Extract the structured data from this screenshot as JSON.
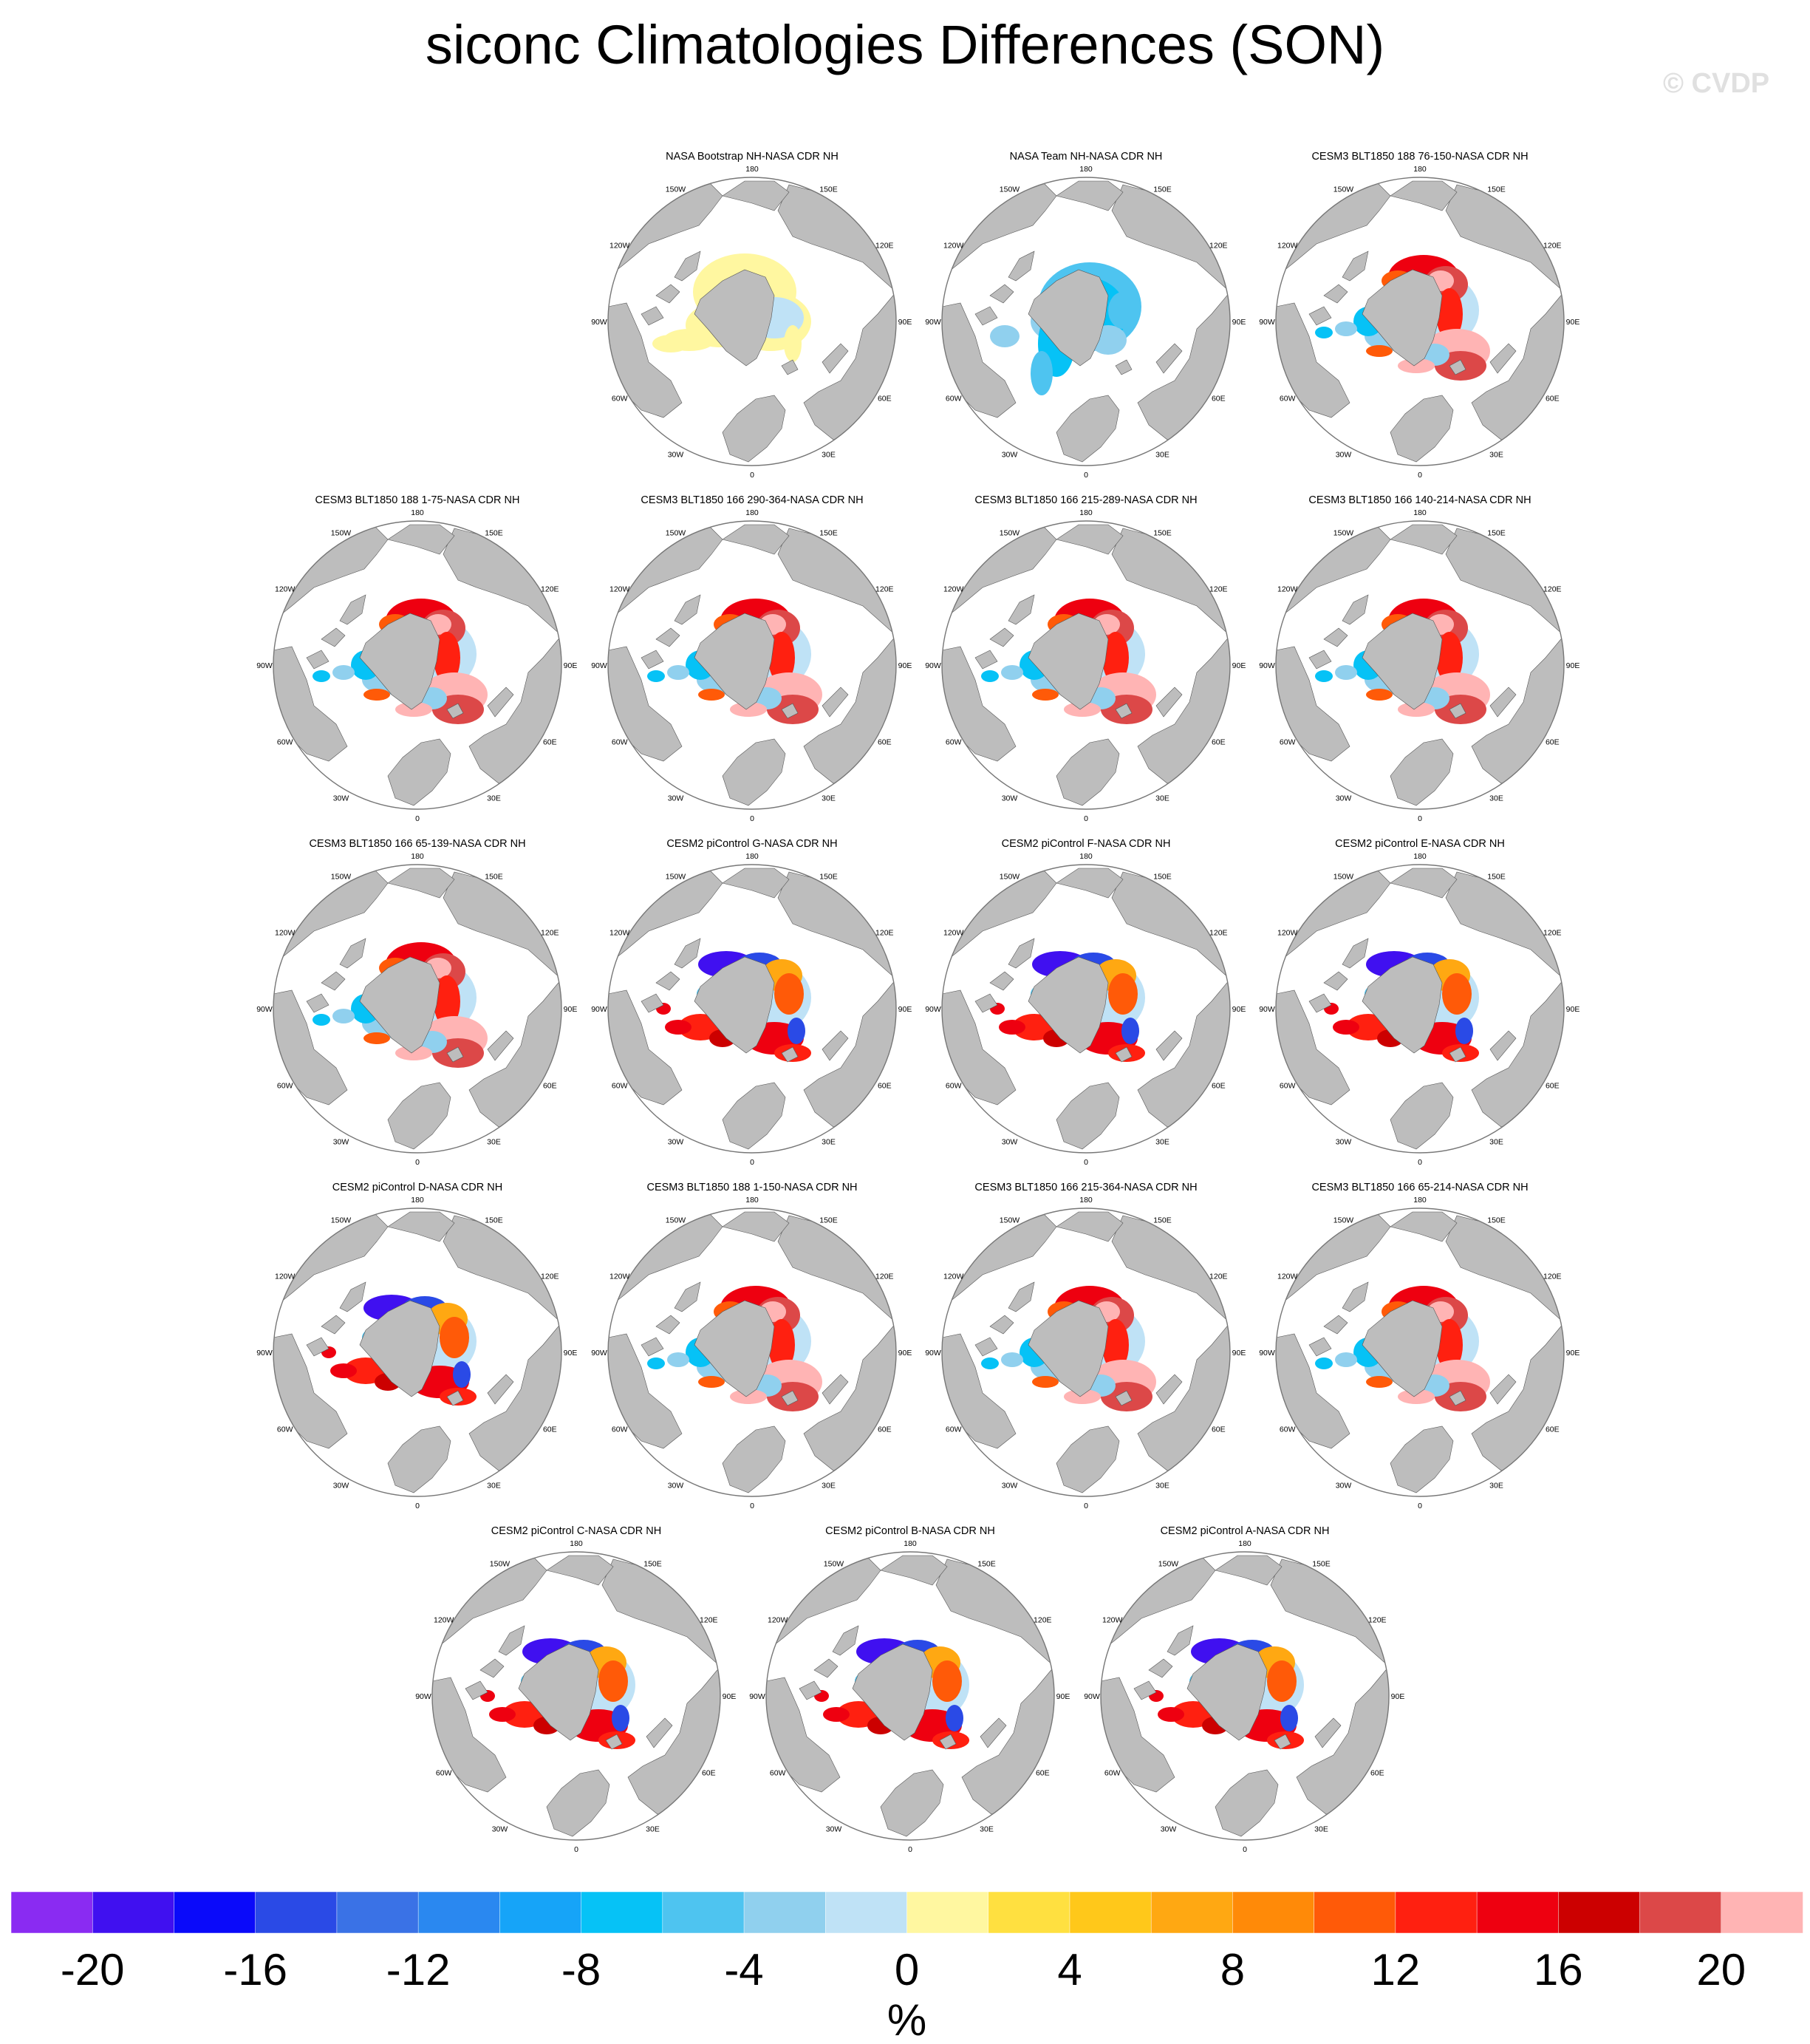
{
  "title": "siconc Climatologies Differences (SON)",
  "watermark": "© CVDP",
  "colors": {
    "land": "#bdbdbd",
    "ocean": "#ffffff",
    "palette": [
      "#8a2bf2",
      "#4010f0",
      "#0a0afa",
      "#2a4ae6",
      "#3a72e6",
      "#2a88f0",
      "#16a4f8",
      "#06c2f6",
      "#4ec4f0",
      "#90d0ee",
      "#bfe2f6",
      "#fff7a0",
      "#ffe040",
      "#ffc81a",
      "#ffa812",
      "#ff8a08",
      "#ff5a08",
      "#ff2010",
      "#ee0010",
      "#cc0000",
      "#dc4848",
      "#ffb4b4"
    ]
  },
  "chart_data": {
    "type": "heatmap",
    "variable": "siconc",
    "season": "SON",
    "map_projection": "north polar stereographic",
    "longitude_labels": [
      "180",
      "150E",
      "120E",
      "90E",
      "60E",
      "30E",
      "0",
      "30W",
      "60W",
      "90W",
      "120W",
      "150W"
    ],
    "panels": [
      {
        "title": "NASA Bootstrap NH-NASA CDR NH",
        "pattern": "yellow_light"
      },
      {
        "title": "NASA Team NH-NASA CDR NH",
        "pattern": "blue"
      },
      {
        "title": "CESM3 BLT1850 188 76-150-NASA CDR NH",
        "pattern": "red_pink"
      },
      {
        "title": "CESM3 BLT1850 188 1-75-NASA CDR NH",
        "pattern": "red_pink"
      },
      {
        "title": "CESM3 BLT1850 166 290-364-NASA CDR NH",
        "pattern": "red_pink"
      },
      {
        "title": "CESM3 BLT1850 166 215-289-NASA CDR NH",
        "pattern": "red_pink"
      },
      {
        "title": "CESM3 BLT1850 166 140-214-NASA CDR NH",
        "pattern": "red_pink"
      },
      {
        "title": "CESM3 BLT1850 166 65-139-NASA CDR NH",
        "pattern": "red_pink"
      },
      {
        "title": "CESM2 piControl G-NASA CDR NH",
        "pattern": "mixed_blue"
      },
      {
        "title": "CESM2 piControl F-NASA CDR NH",
        "pattern": "mixed_blue"
      },
      {
        "title": "CESM2 piControl E-NASA CDR NH",
        "pattern": "mixed_blue"
      },
      {
        "title": "CESM2 piControl D-NASA CDR NH",
        "pattern": "mixed_blue"
      },
      {
        "title": "CESM3 BLT1850 188 1-150-NASA CDR NH",
        "pattern": "red_pink"
      },
      {
        "title": "CESM3 BLT1850 166 215-364-NASA CDR NH",
        "pattern": "red_pink"
      },
      {
        "title": "CESM3 BLT1850 166 65-214-NASA CDR NH",
        "pattern": "red_pink"
      },
      {
        "title": "CESM2 piControl C-NASA CDR NH",
        "pattern": "mixed_blue"
      },
      {
        "title": "CESM2 piControl B-NASA CDR NH",
        "pattern": "mixed_blue"
      },
      {
        "title": "CESM2 piControl A-NASA CDR NH",
        "pattern": "mixed_blue"
      }
    ],
    "colorbar": {
      "range": [
        -22,
        22
      ],
      "interval": 2,
      "tick_labels": [
        "-20",
        "-16",
        "-12",
        "-8",
        "-4",
        "0",
        "4",
        "8",
        "12",
        "16",
        "20"
      ],
      "unit": "%"
    }
  }
}
